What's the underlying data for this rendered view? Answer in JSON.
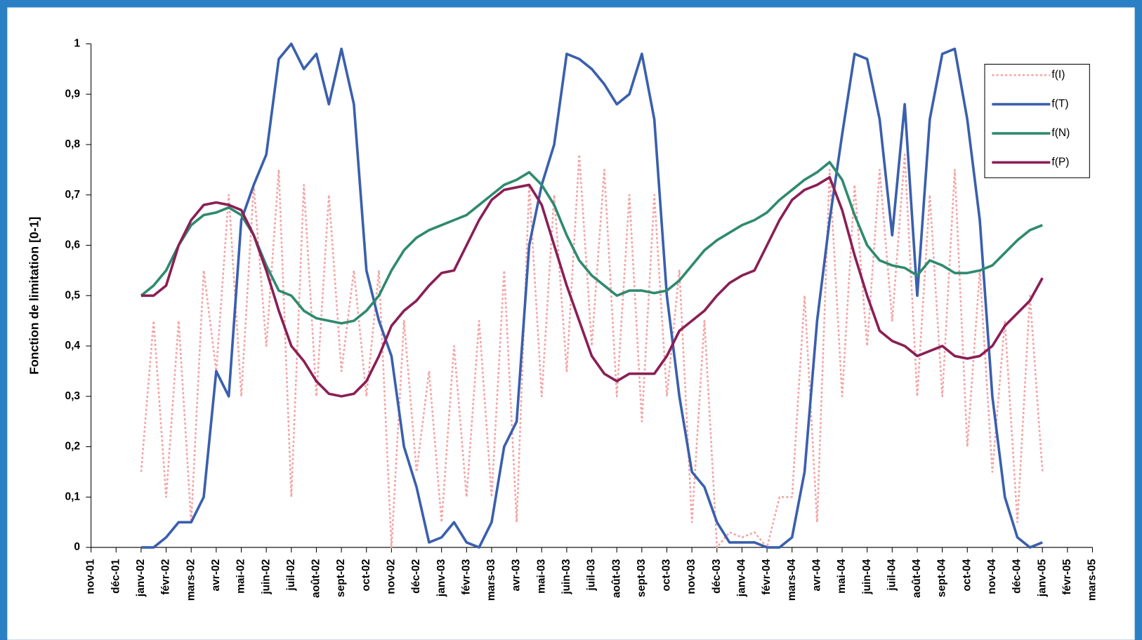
{
  "chart_data": {
    "type": "line",
    "y_label": "Fonction de limitation [0-1]",
    "categories": [
      "nov-01",
      null,
      "déc-01",
      null,
      "janv-02",
      null,
      "févr-02",
      null,
      "mars-02",
      null,
      "avr-02",
      null,
      "mai-02",
      null,
      "juin-02",
      null,
      "juil-02",
      null,
      "août-02",
      null,
      "sept-02",
      null,
      "oct-02",
      null,
      "nov-02",
      null,
      "déc-02",
      null,
      "janv-03",
      null,
      "févr-03",
      null,
      "mars-03",
      null,
      "avr-03",
      null,
      "mai-03",
      null,
      "juin-03",
      null,
      "juil-03",
      null,
      "août-03",
      null,
      "sept-03",
      null,
      "oct-03",
      null,
      "nov-03",
      null,
      "déc-03",
      null,
      "janv-04",
      null,
      "févr-04",
      null,
      "mars-04",
      null,
      "avr-04",
      null,
      "mai-04",
      null,
      "juin-04",
      null,
      "juil-04",
      null,
      "août-04",
      null,
      "sept-04",
      null,
      "oct-04",
      null,
      "nov-04",
      null,
      "déc-04",
      null,
      "janv-05",
      null,
      "févr-05",
      null,
      "mars-05"
    ],
    "ylim": [
      0,
      1
    ],
    "yticks": [
      0,
      {
        "value": 0.1,
        "label": "0,1"
      },
      {
        "value": 0.2,
        "label": "0,2"
      },
      {
        "value": 0.3,
        "label": "0,3"
      },
      {
        "value": 0.4,
        "label": "0,4"
      },
      {
        "value": 0.5,
        "label": "0,5"
      },
      {
        "value": 0.6,
        "label": "0,6"
      },
      {
        "value": 0.7,
        "label": "0,7"
      },
      {
        "value": 0.8,
        "label": "0,8"
      },
      {
        "value": 0.9,
        "label": "0,9"
      },
      1
    ],
    "legend": "upper right",
    "series": [
      {
        "name": "f(I)",
        "color": "#f4a3a3",
        "style": "dotted",
        "values": [
          null,
          null,
          null,
          null,
          0.15,
          0.45,
          0.1,
          0.45,
          0.05,
          0.55,
          0.35,
          0.7,
          0.3,
          0.72,
          0.4,
          0.75,
          0.1,
          0.72,
          0.3,
          0.7,
          0.35,
          0.55,
          0.3,
          0.55,
          0.0,
          0.45,
          0.15,
          0.35,
          0.05,
          0.4,
          0.1,
          0.45,
          0.1,
          0.55,
          0.05,
          0.72,
          0.3,
          0.7,
          0.35,
          0.78,
          0.4,
          0.75,
          0.3,
          0.7,
          0.25,
          0.7,
          0.3,
          0.55,
          0.05,
          0.45,
          0.0,
          0.03,
          0.02,
          0.03,
          0.0,
          0.1,
          0.1,
          0.5,
          0.05,
          0.75,
          0.3,
          0.72,
          0.4,
          0.75,
          0.45,
          0.78,
          0.3,
          0.7,
          0.3,
          0.75,
          0.2,
          0.55,
          0.15,
          0.45,
          0.05,
          0.5,
          0.15,
          null,
          null,
          null,
          null
        ]
      },
      {
        "name": "f(T)",
        "color": "#3a5fad",
        "style": "solid",
        "values": [
          null,
          null,
          null,
          null,
          0.0,
          0.0,
          0.02,
          0.05,
          0.05,
          0.1,
          0.35,
          0.3,
          0.65,
          0.72,
          0.78,
          0.97,
          1.0,
          0.95,
          0.98,
          0.88,
          0.99,
          0.88,
          0.55,
          0.45,
          0.38,
          0.2,
          0.12,
          0.01,
          0.02,
          0.05,
          0.01,
          0.0,
          0.05,
          0.2,
          0.25,
          0.6,
          0.72,
          0.8,
          0.98,
          0.97,
          0.95,
          0.92,
          0.88,
          0.9,
          0.98,
          0.85,
          0.5,
          0.3,
          0.15,
          0.12,
          0.05,
          0.01,
          0.01,
          0.01,
          0.0,
          0.0,
          0.02,
          0.15,
          0.45,
          0.65,
          0.82,
          0.98,
          0.97,
          0.85,
          0.62,
          0.88,
          0.5,
          0.85,
          0.98,
          0.99,
          0.85,
          0.65,
          0.3,
          0.1,
          0.02,
          0.0,
          0.01,
          null,
          null,
          null,
          null
        ]
      },
      {
        "name": "f(N)",
        "color": "#2f8a6e",
        "style": "solid",
        "values": [
          null,
          null,
          null,
          null,
          0.5,
          0.52,
          0.55,
          0.6,
          0.64,
          0.66,
          0.665,
          0.675,
          0.66,
          0.62,
          0.56,
          0.51,
          0.5,
          0.47,
          0.455,
          0.45,
          0.445,
          0.45,
          0.47,
          0.5,
          0.55,
          0.59,
          0.615,
          0.63,
          0.64,
          0.65,
          0.66,
          0.68,
          0.7,
          0.72,
          0.73,
          0.745,
          0.72,
          0.68,
          0.62,
          0.57,
          0.54,
          0.52,
          0.5,
          0.51,
          0.51,
          0.505,
          0.51,
          0.53,
          0.56,
          0.59,
          0.61,
          0.625,
          0.64,
          0.65,
          0.665,
          0.69,
          0.71,
          0.73,
          0.745,
          0.765,
          0.73,
          0.66,
          0.6,
          0.57,
          0.56,
          0.555,
          0.54,
          0.57,
          0.56,
          0.545,
          0.545,
          0.55,
          0.56,
          0.585,
          0.61,
          0.63,
          0.64,
          null,
          null,
          null,
          null
        ]
      },
      {
        "name": "f(P)",
        "color": "#8a1f55",
        "style": "solid",
        "values": [
          null,
          null,
          null,
          null,
          0.5,
          0.5,
          0.52,
          0.6,
          0.65,
          0.68,
          0.685,
          0.68,
          0.67,
          0.62,
          0.55,
          0.47,
          0.4,
          0.37,
          0.33,
          0.305,
          0.3,
          0.305,
          0.33,
          0.38,
          0.44,
          0.47,
          0.49,
          0.52,
          0.545,
          0.55,
          0.6,
          0.65,
          0.69,
          0.71,
          0.715,
          0.72,
          0.68,
          0.6,
          0.52,
          0.45,
          0.38,
          0.345,
          0.33,
          0.345,
          0.345,
          0.345,
          0.38,
          0.43,
          0.45,
          0.47,
          0.5,
          0.525,
          0.54,
          0.55,
          0.6,
          0.65,
          0.69,
          0.71,
          0.72,
          0.735,
          0.67,
          0.58,
          0.5,
          0.43,
          0.41,
          0.4,
          0.38,
          0.39,
          0.4,
          0.38,
          0.375,
          0.38,
          0.4,
          0.44,
          0.465,
          0.49,
          0.535,
          null,
          null,
          null,
          null
        ]
      }
    ]
  }
}
